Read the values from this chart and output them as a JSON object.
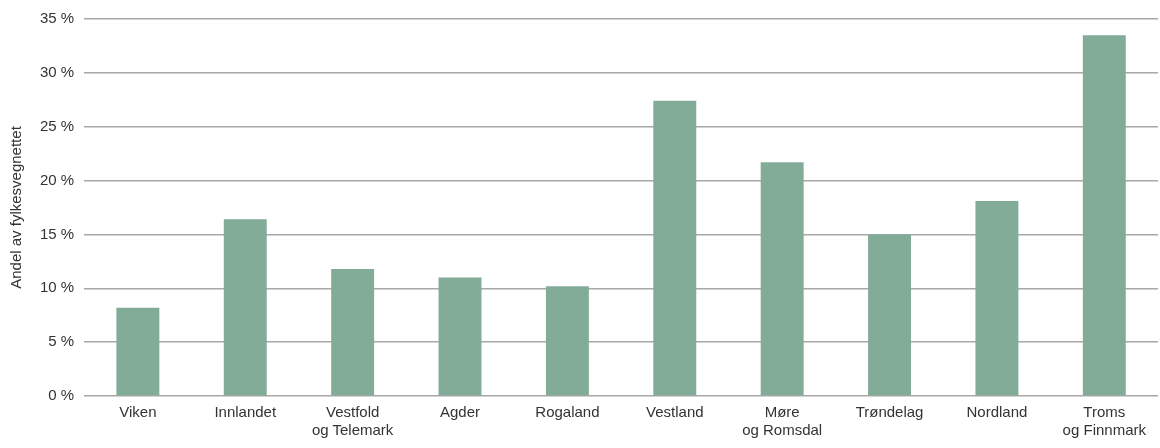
{
  "chart_data": {
    "type": "bar",
    "ylabel": "Andel av fylkesvegnettet",
    "categories": [
      "Viken",
      "Innlandet",
      "Vestfold\nog Telemark",
      "Agder",
      "Rogaland",
      "Vestland",
      "Møre\nog Romsdal",
      "Trøndelag",
      "Nordland",
      "Troms\nog Finnmark"
    ],
    "values": [
      8.2,
      16.4,
      11.8,
      11.0,
      10.2,
      27.4,
      21.7,
      15.0,
      18.1,
      33.5
    ],
    "color": "#82ac98",
    "ylim": [
      0,
      35
    ],
    "yticks": [
      {
        "value": 0,
        "label": "0 %"
      },
      {
        "value": 5,
        "label": "5 %"
      },
      {
        "value": 10,
        "label": "10 %"
      },
      {
        "value": 15,
        "label": "15 %"
      },
      {
        "value": 20,
        "label": "20 %"
      },
      {
        "value": 25,
        "label": "25 %"
      },
      {
        "value": 30,
        "label": "30 %"
      },
      {
        "value": 35,
        "label": "35 %"
      }
    ],
    "grid": "y",
    "legend": false
  }
}
